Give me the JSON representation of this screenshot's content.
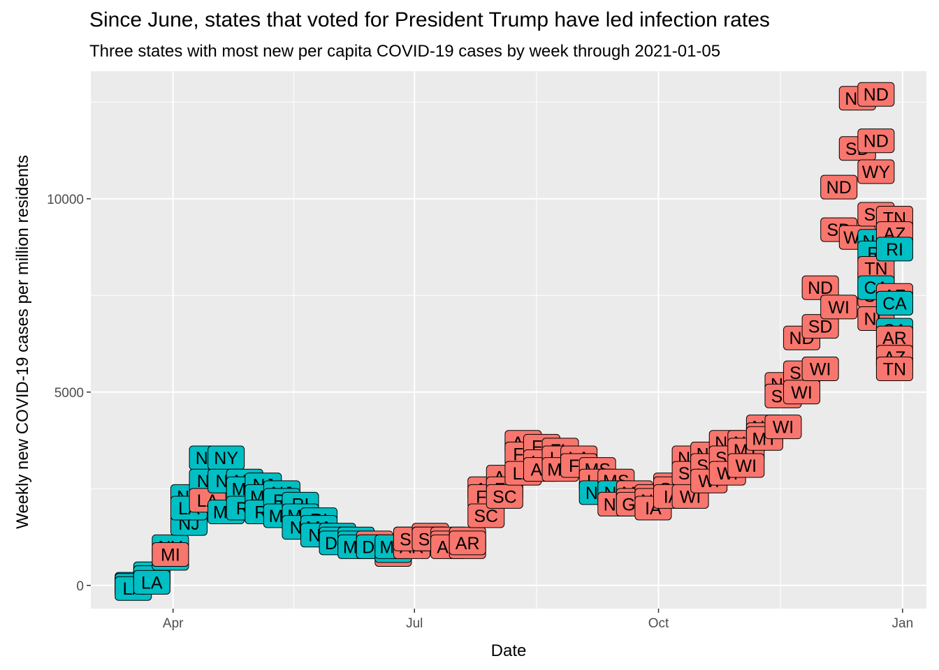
{
  "title": "Since June, states that voted for President Trump have led infection rates",
  "subtitle": "Three states with most new per capita COVID-19 cases by week through 2021-01-05",
  "chart_data": {
    "type": "scatter",
    "xlabel": "Date",
    "ylabel": "Weekly new COVID-19 cases per million residents",
    "xlim": [
      "2020-03-01",
      "2021-01-10"
    ],
    "ylim": [
      -600,
      13300
    ],
    "x_ticks": [
      {
        "date": "2020-04-01",
        "label": "Apr"
      },
      {
        "date": "2020-07-01",
        "label": "Jul"
      },
      {
        "date": "2020-10-01",
        "label": "Oct"
      },
      {
        "date": "2021-01-01",
        "label": "Jan"
      }
    ],
    "y_ticks": [
      0,
      5000,
      10000
    ],
    "grid": true,
    "legend": "none",
    "colors": {
      "trump": "#F8766D",
      "other": "#00BFC4",
      "panel": "#EBEBEB",
      "grid": "#FFFFFF"
    },
    "points": [
      {
        "date": "2020-03-17",
        "state": "WA",
        "value": 30,
        "group": "other"
      },
      {
        "date": "2020-03-17",
        "state": "NY",
        "value": 0,
        "group": "other"
      },
      {
        "date": "2020-03-17",
        "state": "LA",
        "value": -80,
        "group": "other"
      },
      {
        "date": "2020-03-24",
        "state": "NY",
        "value": 300,
        "group": "other"
      },
      {
        "date": "2020-03-24",
        "state": "NJ",
        "value": 200,
        "group": "other"
      },
      {
        "date": "2020-03-24",
        "state": "LA",
        "value": 80,
        "group": "other"
      },
      {
        "date": "2020-03-31",
        "state": "NY",
        "value": 1000,
        "group": "other"
      },
      {
        "date": "2020-03-31",
        "state": "NJ",
        "value": 700,
        "group": "other"
      },
      {
        "date": "2020-03-31",
        "state": "MI",
        "value": 800,
        "group": "trump"
      },
      {
        "date": "2020-04-07",
        "state": "NY",
        "value": 2300,
        "group": "other"
      },
      {
        "date": "2020-04-07",
        "state": "NJ",
        "value": 1600,
        "group": "other"
      },
      {
        "date": "2020-04-07",
        "state": "LA",
        "value": 2000,
        "group": "other"
      },
      {
        "date": "2020-04-14",
        "state": "NY",
        "value": 3300,
        "group": "other"
      },
      {
        "date": "2020-04-14",
        "state": "NJ",
        "value": 2700,
        "group": "other"
      },
      {
        "date": "2020-04-14",
        "state": "LA",
        "value": 2200,
        "group": "trump"
      },
      {
        "date": "2020-04-21",
        "state": "NY",
        "value": 3300,
        "group": "other"
      },
      {
        "date": "2020-04-21",
        "state": "NJ",
        "value": 2700,
        "group": "other"
      },
      {
        "date": "2020-04-21",
        "state": "MA",
        "value": 1900,
        "group": "other"
      },
      {
        "date": "2020-04-28",
        "state": "NJ",
        "value": 2700,
        "group": "other"
      },
      {
        "date": "2020-04-28",
        "state": "MA",
        "value": 2500,
        "group": "other"
      },
      {
        "date": "2020-04-28",
        "state": "RI",
        "value": 2000,
        "group": "other"
      },
      {
        "date": "2020-05-05",
        "state": "NJ",
        "value": 2600,
        "group": "other"
      },
      {
        "date": "2020-05-05",
        "state": "MA",
        "value": 2300,
        "group": "other"
      },
      {
        "date": "2020-05-05",
        "state": "RI",
        "value": 1900,
        "group": "other"
      },
      {
        "date": "2020-05-12",
        "state": "NJ",
        "value": 2400,
        "group": "other"
      },
      {
        "date": "2020-05-12",
        "state": "RI",
        "value": 2200,
        "group": "other"
      },
      {
        "date": "2020-05-12",
        "state": "MA",
        "value": 1800,
        "group": "other"
      },
      {
        "date": "2020-05-19",
        "state": "RI",
        "value": 2100,
        "group": "other"
      },
      {
        "date": "2020-05-19",
        "state": "MA",
        "value": 1800,
        "group": "other"
      },
      {
        "date": "2020-05-19",
        "state": "NJ",
        "value": 1500,
        "group": "other"
      },
      {
        "date": "2020-05-26",
        "state": "RI",
        "value": 1700,
        "group": "other"
      },
      {
        "date": "2020-05-26",
        "state": "MA",
        "value": 1500,
        "group": "other"
      },
      {
        "date": "2020-05-26",
        "state": "NJ",
        "value": 1300,
        "group": "other"
      },
      {
        "date": "2020-06-02",
        "state": "MA",
        "value": 1300,
        "group": "other"
      },
      {
        "date": "2020-06-02",
        "state": "RI",
        "value": 1200,
        "group": "other"
      },
      {
        "date": "2020-06-02",
        "state": "DC",
        "value": 1100,
        "group": "other"
      },
      {
        "date": "2020-06-09",
        "state": "MD",
        "value": 1200,
        "group": "other"
      },
      {
        "date": "2020-06-09",
        "state": "DC",
        "value": 1100,
        "group": "other"
      },
      {
        "date": "2020-06-09",
        "state": "MA",
        "value": 1000,
        "group": "other"
      },
      {
        "date": "2020-06-16",
        "state": "NE",
        "value": 1100,
        "group": "trump"
      },
      {
        "date": "2020-06-16",
        "state": "MD",
        "value": 1000,
        "group": "other"
      },
      {
        "date": "2020-06-16",
        "state": "DC",
        "value": 1000,
        "group": "other"
      },
      {
        "date": "2020-06-23",
        "state": "NE",
        "value": 800,
        "group": "trump"
      },
      {
        "date": "2020-06-23",
        "state": "DE",
        "value": 900,
        "group": "other"
      },
      {
        "date": "2020-06-23",
        "state": "MN",
        "value": 1000,
        "group": "other"
      },
      {
        "date": "2020-06-30",
        "state": "AZ",
        "value": 1200,
        "group": "trump"
      },
      {
        "date": "2020-06-30",
        "state": "AR",
        "value": 1000,
        "group": "trump"
      },
      {
        "date": "2020-06-30",
        "state": "SC",
        "value": 1200,
        "group": "trump"
      },
      {
        "date": "2020-07-07",
        "state": "AZ",
        "value": 1300,
        "group": "trump"
      },
      {
        "date": "2020-07-07",
        "state": "AR",
        "value": 1200,
        "group": "trump"
      },
      {
        "date": "2020-07-07",
        "state": "SC",
        "value": 1200,
        "group": "trump"
      },
      {
        "date": "2020-07-14",
        "state": "SC",
        "value": 1200,
        "group": "trump"
      },
      {
        "date": "2020-07-14",
        "state": "AZ",
        "value": 1100,
        "group": "trump"
      },
      {
        "date": "2020-07-14",
        "state": "AR",
        "value": 1000,
        "group": "trump"
      },
      {
        "date": "2020-07-21",
        "state": "SC",
        "value": 1200,
        "group": "trump"
      },
      {
        "date": "2020-07-21",
        "state": "AZ",
        "value": 1000,
        "group": "trump"
      },
      {
        "date": "2020-07-21",
        "state": "AR",
        "value": 1100,
        "group": "trump"
      },
      {
        "date": "2020-07-28",
        "state": "AZ",
        "value": 2500,
        "group": "trump"
      },
      {
        "date": "2020-07-28",
        "state": "FL",
        "value": 2300,
        "group": "trump"
      },
      {
        "date": "2020-07-28",
        "state": "SC",
        "value": 1800,
        "group": "trump"
      },
      {
        "date": "2020-08-04",
        "state": "AZ",
        "value": 2800,
        "group": "trump"
      },
      {
        "date": "2020-08-04",
        "state": "FL",
        "value": 2500,
        "group": "trump"
      },
      {
        "date": "2020-08-04",
        "state": "SC",
        "value": 2300,
        "group": "trump"
      },
      {
        "date": "2020-08-11",
        "state": "AZ",
        "value": 3700,
        "group": "trump"
      },
      {
        "date": "2020-08-11",
        "state": "FL",
        "value": 3400,
        "group": "trump"
      },
      {
        "date": "2020-08-11",
        "state": "LA",
        "value": 2900,
        "group": "trump"
      },
      {
        "date": "2020-08-18",
        "state": "FL",
        "value": 3600,
        "group": "trump"
      },
      {
        "date": "2020-08-18",
        "state": "LA",
        "value": 3200,
        "group": "trump"
      },
      {
        "date": "2020-08-18",
        "state": "AZ",
        "value": 3000,
        "group": "trump"
      },
      {
        "date": "2020-08-25",
        "state": "FL",
        "value": 3500,
        "group": "trump"
      },
      {
        "date": "2020-08-25",
        "state": "LA",
        "value": 3300,
        "group": "trump"
      },
      {
        "date": "2020-08-25",
        "state": "MS",
        "value": 3000,
        "group": "trump"
      },
      {
        "date": "2020-09-01",
        "state": "LA",
        "value": 3300,
        "group": "trump"
      },
      {
        "date": "2020-09-01",
        "state": "MS",
        "value": 3100,
        "group": "trump"
      },
      {
        "date": "2020-09-01",
        "state": "FL",
        "value": 3100,
        "group": "trump"
      },
      {
        "date": "2020-09-08",
        "state": "MS",
        "value": 3000,
        "group": "trump"
      },
      {
        "date": "2020-09-08",
        "state": "LA",
        "value": 2700,
        "group": "trump"
      },
      {
        "date": "2020-09-08",
        "state": "NV",
        "value": 2400,
        "group": "other"
      },
      {
        "date": "2020-09-15",
        "state": "MS",
        "value": 2700,
        "group": "trump"
      },
      {
        "date": "2020-09-15",
        "state": "NV",
        "value": 2400,
        "group": "other"
      },
      {
        "date": "2020-09-15",
        "state": "ND",
        "value": 2100,
        "group": "trump"
      },
      {
        "date": "2020-09-22",
        "state": "MS",
        "value": 2400,
        "group": "trump"
      },
      {
        "date": "2020-09-22",
        "state": "ND",
        "value": 2200,
        "group": "trump"
      },
      {
        "date": "2020-09-22",
        "state": "GA",
        "value": 2100,
        "group": "trump"
      },
      {
        "date": "2020-09-29",
        "state": "SD",
        "value": 2300,
        "group": "trump"
      },
      {
        "date": "2020-09-29",
        "state": "ND",
        "value": 2200,
        "group": "trump"
      },
      {
        "date": "2020-09-29",
        "state": "IA",
        "value": 2000,
        "group": "trump"
      },
      {
        "date": "2020-10-06",
        "state": "ND",
        "value": 2600,
        "group": "trump"
      },
      {
        "date": "2020-10-06",
        "state": "SD",
        "value": 2500,
        "group": "trump"
      },
      {
        "date": "2020-10-06",
        "state": "IA",
        "value": 2300,
        "group": "trump"
      },
      {
        "date": "2020-10-13",
        "state": "ND",
        "value": 3300,
        "group": "trump"
      },
      {
        "date": "2020-10-13",
        "state": "SD",
        "value": 2900,
        "group": "trump"
      },
      {
        "date": "2020-10-13",
        "state": "WI",
        "value": 2300,
        "group": "trump"
      },
      {
        "date": "2020-10-20",
        "state": "ND",
        "value": 3400,
        "group": "trump"
      },
      {
        "date": "2020-10-20",
        "state": "SD",
        "value": 3100,
        "group": "trump"
      },
      {
        "date": "2020-10-20",
        "state": "WI",
        "value": 2700,
        "group": "trump"
      },
      {
        "date": "2020-10-27",
        "state": "ND",
        "value": 3700,
        "group": "trump"
      },
      {
        "date": "2020-10-27",
        "state": "SD",
        "value": 3300,
        "group": "trump"
      },
      {
        "date": "2020-10-27",
        "state": "WI",
        "value": 2900,
        "group": "trump"
      },
      {
        "date": "2020-11-03",
        "state": "ND",
        "value": 3700,
        "group": "trump"
      },
      {
        "date": "2020-11-03",
        "state": "MT",
        "value": 3500,
        "group": "trump"
      },
      {
        "date": "2020-11-03",
        "state": "WI",
        "value": 3100,
        "group": "trump"
      },
      {
        "date": "2020-11-10",
        "state": "ND",
        "value": 4100,
        "group": "trump"
      },
      {
        "date": "2020-11-10",
        "state": "SD",
        "value": 3900,
        "group": "trump"
      },
      {
        "date": "2020-11-10",
        "state": "MT",
        "value": 3800,
        "group": "trump"
      },
      {
        "date": "2020-11-17",
        "state": "ND",
        "value": 5200,
        "group": "trump"
      },
      {
        "date": "2020-11-17",
        "state": "SD",
        "value": 4900,
        "group": "trump"
      },
      {
        "date": "2020-11-17",
        "state": "WI",
        "value": 4100,
        "group": "trump"
      },
      {
        "date": "2020-11-24",
        "state": "ND",
        "value": 6400,
        "group": "trump"
      },
      {
        "date": "2020-11-24",
        "state": "SD",
        "value": 5500,
        "group": "trump"
      },
      {
        "date": "2020-11-24",
        "state": "WI",
        "value": 5000,
        "group": "trump"
      },
      {
        "date": "2020-12-01",
        "state": "ND",
        "value": 7700,
        "group": "trump"
      },
      {
        "date": "2020-12-01",
        "state": "SD",
        "value": 6700,
        "group": "trump"
      },
      {
        "date": "2020-12-01",
        "state": "WI",
        "value": 5600,
        "group": "trump"
      },
      {
        "date": "2020-12-08",
        "state": "ND",
        "value": 10300,
        "group": "trump"
      },
      {
        "date": "2020-12-08",
        "state": "SD",
        "value": 9200,
        "group": "trump"
      },
      {
        "date": "2020-12-08",
        "state": "WI",
        "value": 7200,
        "group": "trump"
      },
      {
        "date": "2020-12-15",
        "state": "ND",
        "value": 12600,
        "group": "trump"
      },
      {
        "date": "2020-12-15",
        "state": "SD",
        "value": 11300,
        "group": "trump"
      },
      {
        "date": "2020-12-15",
        "state": "WY",
        "value": 9000,
        "group": "trump"
      },
      {
        "date": "2020-12-22",
        "state": "ND",
        "value": 12700,
        "group": "trump"
      },
      {
        "date": "2020-12-22",
        "state": "ND",
        "value": 11500,
        "group": "trump"
      },
      {
        "date": "2020-12-22",
        "state": "WY",
        "value": 10700,
        "group": "trump"
      },
      {
        "date": "2020-12-22",
        "state": "SD",
        "value": 9600,
        "group": "trump"
      },
      {
        "date": "2020-12-22",
        "state": "NM",
        "value": 8900,
        "group": "other"
      },
      {
        "date": "2020-12-22",
        "state": "ND",
        "value": 7900,
        "group": "trump"
      },
      {
        "date": "2020-12-22",
        "state": "SD",
        "value": 7500,
        "group": "trump"
      },
      {
        "date": "2020-12-22",
        "state": "RI",
        "value": 8600,
        "group": "other"
      },
      {
        "date": "2020-12-22",
        "state": "TN",
        "value": 8200,
        "group": "trump"
      },
      {
        "date": "2020-12-22",
        "state": "CA",
        "value": 7700,
        "group": "other"
      },
      {
        "date": "2020-12-22",
        "state": "NE",
        "value": 6900,
        "group": "trump"
      },
      {
        "date": "2020-12-29",
        "state": "AZ",
        "value": 7500,
        "group": "trump"
      },
      {
        "date": "2020-12-29",
        "state": "TN",
        "value": 9500,
        "group": "trump"
      },
      {
        "date": "2020-12-29",
        "state": "AZ",
        "value": 9100,
        "group": "trump"
      },
      {
        "date": "2020-12-29",
        "state": "RI",
        "value": 8700,
        "group": "other"
      },
      {
        "date": "2020-12-29",
        "state": "UT",
        "value": 7300,
        "group": "trump"
      },
      {
        "date": "2020-12-29",
        "state": "CA",
        "value": 6600,
        "group": "other"
      },
      {
        "date": "2020-12-29",
        "state": "AR",
        "value": 6400,
        "group": "trump"
      },
      {
        "date": "2020-12-29",
        "state": "CA",
        "value": 5900,
        "group": "other"
      },
      {
        "date": "2020-12-29",
        "state": "AZ",
        "value": 5900,
        "group": "trump"
      },
      {
        "date": "2020-12-29",
        "state": "TN",
        "value": 5600,
        "group": "trump"
      },
      {
        "date": "2020-12-29",
        "state": "CA",
        "value": 7300,
        "group": "other"
      }
    ]
  }
}
